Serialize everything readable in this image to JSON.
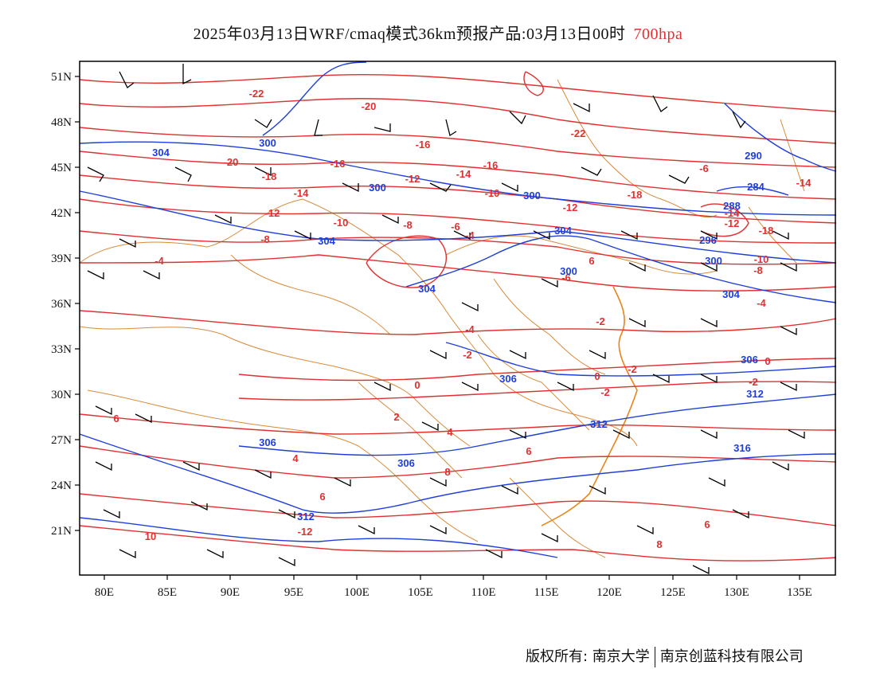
{
  "title": {
    "main": "2025年03月13日WRF/cmaq模式36km预报产品:03月13日00时",
    "level": "700hpa"
  },
  "colors": {
    "temperature": "#e03030",
    "height": "#1f3fd8",
    "border": "#d98a3a",
    "barb": "#000000",
    "frame": "#000000"
  },
  "axes": {
    "lat_labels": [
      "51N",
      "48N",
      "45N",
      "42N",
      "39N",
      "36N",
      "33N",
      "30N",
      "27N",
      "24N",
      "21N"
    ],
    "lon_labels": [
      "80E",
      "85E",
      "90E",
      "95E",
      "100E",
      "105E",
      "110E",
      "115E",
      "120E",
      "125E",
      "130E",
      "135E"
    ]
  },
  "temperature_labels": [
    "-22",
    "-20",
    "-22",
    "-16",
    "-20",
    "-18",
    "-16",
    "-12",
    "-14",
    "-16",
    "-18",
    "-14",
    "-10",
    "-12",
    "-12",
    "-10",
    "-8",
    "-8",
    "-6",
    "-4",
    "-4",
    "-6",
    "-4",
    "-2",
    "-2",
    "0",
    "0",
    "-2",
    "2",
    "-2",
    "4",
    "4",
    "6",
    "6",
    "6",
    "6",
    "6",
    "8",
    "8",
    "10",
    "-14",
    "-12",
    "-10",
    "-18",
    "-14",
    "-12",
    "-8",
    "-6",
    "-4",
    "-2",
    "0"
  ],
  "height_labels": [
    "304",
    "300",
    "300",
    "300",
    "304",
    "304",
    "304",
    "296",
    "300",
    "288",
    "284",
    "290",
    "300",
    "304",
    "306",
    "306",
    "312",
    "312",
    "306",
    "306",
    "312",
    "316"
  ],
  "copyright": {
    "owner1": "版权所有: 南京大学",
    "owner2": "南京创蓝科技有限公司"
  }
}
